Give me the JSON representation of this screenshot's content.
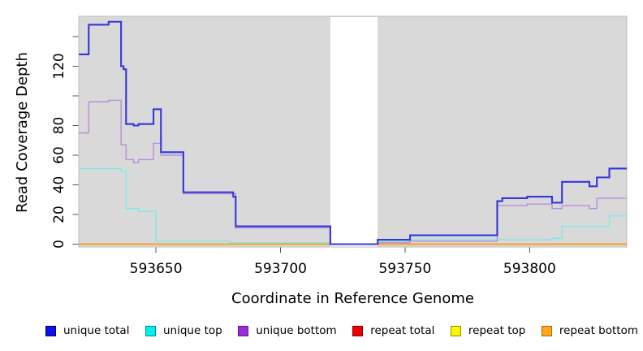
{
  "figure": {
    "xlabel": "Coordinate in Reference Genome",
    "ylabel": "Read Coverage Depth"
  },
  "axes": {
    "x": {
      "ticks": [
        "593650",
        "593700",
        "593750",
        "593800"
      ],
      "tick_values": [
        593650,
        593700,
        593750,
        593800
      ]
    },
    "y": {
      "ticks": [
        0,
        20,
        40,
        60,
        80,
        100,
        120,
        140
      ],
      "labeled": [
        "0",
        "20",
        "40",
        "60",
        "80",
        "120"
      ],
      "labeled_values": [
        0,
        20,
        40,
        60,
        80,
        120
      ]
    }
  },
  "legend": {
    "items": [
      {
        "label": "unique total",
        "fill": "#0f0fe8",
        "border": "#00007a"
      },
      {
        "label": "unique top",
        "fill": "#00efef",
        "border": "#008b8b"
      },
      {
        "label": "unique bottom",
        "fill": "#9d2bd6",
        "border": "#5e1a86"
      },
      {
        "label": "repeat total",
        "fill": "#ee0000",
        "border": "#8b0000"
      },
      {
        "label": "repeat top",
        "fill": "#f8f800",
        "border": "#9a8b00"
      },
      {
        "label": "repeat bottom",
        "fill": "#ffa51f",
        "border": "#b36b00"
      }
    ]
  },
  "chart_data": {
    "type": "line",
    "subtype": "step",
    "title": "",
    "xlabel": "Coordinate in Reference Genome",
    "ylabel": "Read Coverage Depth",
    "xlim": [
      593619,
      593839
    ],
    "ylim": [
      0,
      154
    ],
    "x_ticks": [
      593650,
      593700,
      593750,
      593800
    ],
    "y_ticks": [
      0,
      20,
      40,
      60,
      80,
      100,
      120,
      140
    ],
    "grid": false,
    "legend_position": "bottom",
    "panel_background": "#d9d9d9",
    "gap_region": [
      593720,
      593739
    ],
    "series": [
      {
        "name": "repeat total",
        "color": "#dd3333",
        "width": 1.4,
        "points": [
          [
            593619,
            0
          ],
          [
            593839,
            0
          ]
        ]
      },
      {
        "name": "repeat top",
        "color": "#eeee22",
        "width": 1.4,
        "points": [
          [
            593619,
            0
          ],
          [
            593839,
            0
          ]
        ]
      },
      {
        "name": "repeat bottom",
        "color": "#ff9d1e",
        "width": 1.8,
        "points": [
          [
            593619,
            0
          ],
          [
            593839,
            0
          ]
        ]
      },
      {
        "name": "unique top",
        "color": "#7de9e9",
        "width": 1.4,
        "points": [
          [
            593619,
            51
          ],
          [
            593636,
            49
          ],
          [
            593638,
            24
          ],
          [
            593643,
            22
          ],
          [
            593650,
            2
          ],
          [
            593680,
            1
          ],
          [
            593720,
            0
          ],
          [
            593739,
            2
          ],
          [
            593752,
            3
          ],
          [
            593787,
            3
          ],
          [
            593809,
            4
          ],
          [
            593813,
            12
          ],
          [
            593832,
            19
          ],
          [
            593839,
            19
          ]
        ]
      },
      {
        "name": "unique bottom",
        "color": "#b78edc",
        "width": 1.4,
        "points": [
          [
            593619,
            75
          ],
          [
            593623,
            96
          ],
          [
            593631,
            97
          ],
          [
            593636,
            67
          ],
          [
            593638,
            57
          ],
          [
            593641,
            55
          ],
          [
            593643,
            57
          ],
          [
            593649,
            68
          ],
          [
            593652,
            60
          ],
          [
            593661,
            34
          ],
          [
            593682,
            11
          ],
          [
            593720,
            0
          ],
          [
            593739,
            1
          ],
          [
            593752,
            2
          ],
          [
            593787,
            26
          ],
          [
            593799,
            27
          ],
          [
            593809,
            24
          ],
          [
            593813,
            26
          ],
          [
            593824,
            24
          ],
          [
            593827,
            31
          ],
          [
            593839,
            31
          ]
        ]
      },
      {
        "name": "unique total",
        "color": "#3535dc",
        "width": 2.1,
        "points": [
          [
            593619,
            128
          ],
          [
            593623,
            148
          ],
          [
            593631,
            150
          ],
          [
            593636,
            120
          ],
          [
            593637,
            118
          ],
          [
            593638,
            81
          ],
          [
            593641,
            80
          ],
          [
            593643,
            81
          ],
          [
            593649,
            91
          ],
          [
            593652,
            62
          ],
          [
            593661,
            35
          ],
          [
            593681,
            32
          ],
          [
            593682,
            12
          ],
          [
            593720,
            0
          ],
          [
            593739,
            3
          ],
          [
            593752,
            6
          ],
          [
            593787,
            29
          ],
          [
            593789,
            31
          ],
          [
            593799,
            32
          ],
          [
            593809,
            28
          ],
          [
            593813,
            42
          ],
          [
            593824,
            39
          ],
          [
            593827,
            45
          ],
          [
            593832,
            51
          ],
          [
            593839,
            51
          ]
        ]
      }
    ]
  }
}
